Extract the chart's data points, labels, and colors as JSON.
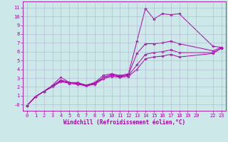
{
  "xlabel": "Windchill (Refroidissement éolien,°C)",
  "ylabel": "",
  "bg_color": "#cce8e8",
  "grid_color": "#aaaacc",
  "line_color": "#aa00aa",
  "xlim": [
    -0.5,
    23.5
  ],
  "ylim": [
    -0.7,
    11.7
  ],
  "xticks": [
    0,
    1,
    2,
    3,
    4,
    5,
    6,
    7,
    8,
    9,
    10,
    11,
    12,
    13,
    14,
    15,
    16,
    17,
    18,
    19,
    20,
    22,
    23
  ],
  "yticks": [
    0,
    1,
    2,
    3,
    4,
    5,
    6,
    7,
    8,
    9,
    10,
    11
  ],
  "ytick_labels": [
    "-0",
    "1",
    "2",
    "3",
    "4",
    "5",
    "6",
    "7",
    "8",
    "9",
    "10",
    "11"
  ],
  "series": [
    {
      "x": [
        0,
        1,
        2,
        3,
        4,
        5,
        6,
        7,
        8,
        9,
        10,
        11,
        12,
        13,
        14,
        15,
        16,
        17,
        18,
        22,
        23
      ],
      "y": [
        -0.1,
        0.9,
        1.5,
        2.2,
        3.1,
        2.5,
        2.5,
        2.2,
        2.5,
        3.3,
        3.5,
        3.3,
        3.5,
        7.2,
        10.9,
        9.7,
        10.3,
        10.2,
        10.3,
        6.6,
        6.5
      ]
    },
    {
      "x": [
        0,
        1,
        2,
        3,
        4,
        5,
        6,
        7,
        8,
        9,
        10,
        11,
        12,
        13,
        14,
        15,
        16,
        17,
        18,
        22,
        23
      ],
      "y": [
        -0.1,
        0.9,
        1.5,
        2.1,
        2.8,
        2.5,
        2.4,
        2.2,
        2.4,
        3.1,
        3.4,
        3.2,
        3.4,
        5.8,
        6.9,
        6.9,
        7.0,
        7.2,
        6.9,
        6.1,
        6.5
      ]
    },
    {
      "x": [
        0,
        1,
        2,
        3,
        4,
        5,
        6,
        7,
        8,
        9,
        10,
        11,
        12,
        13,
        14,
        15,
        16,
        17,
        18,
        22,
        23
      ],
      "y": [
        -0.1,
        0.9,
        1.5,
        2.1,
        2.7,
        2.5,
        2.4,
        2.2,
        2.4,
        3.0,
        3.3,
        3.2,
        3.3,
        4.5,
        5.7,
        5.9,
        6.0,
        6.2,
        5.9,
        5.9,
        6.4
      ]
    },
    {
      "x": [
        0,
        1,
        2,
        3,
        4,
        5,
        6,
        7,
        8,
        9,
        10,
        11,
        12,
        13,
        14,
        15,
        16,
        17,
        18,
        22,
        23
      ],
      "y": [
        -0.1,
        0.9,
        1.5,
        2.0,
        2.6,
        2.4,
        2.3,
        2.1,
        2.3,
        2.9,
        3.2,
        3.1,
        3.2,
        4.0,
        5.2,
        5.4,
        5.5,
        5.7,
        5.4,
        5.8,
        6.4
      ]
    }
  ],
  "tick_fontsize": 5.0,
  "xlabel_fontsize": 5.5,
  "marker_size": 1.8,
  "linewidth": 0.7
}
